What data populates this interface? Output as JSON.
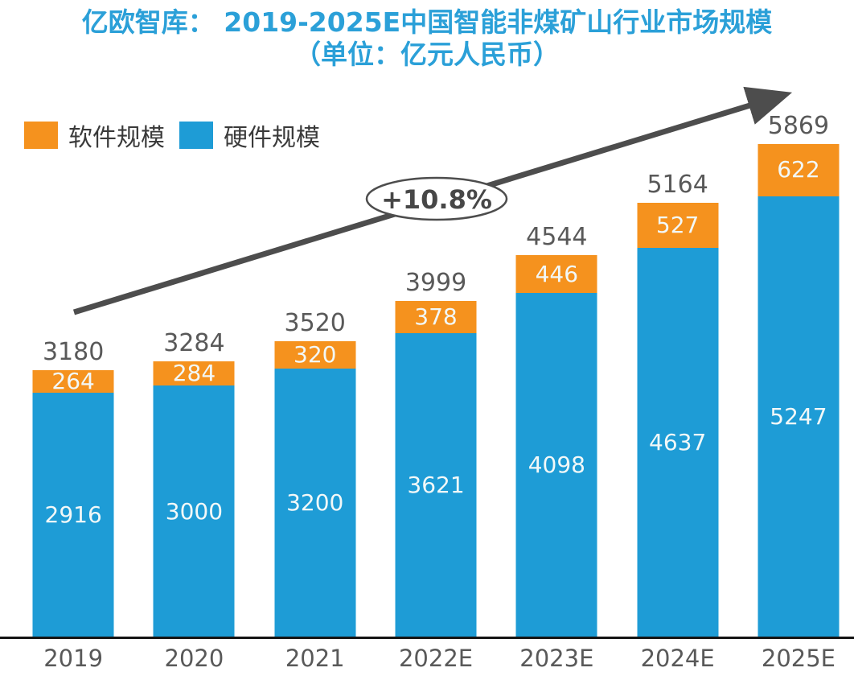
{
  "title": {
    "line1": "亿欧智库： 2019-2025E中国智能非煤矿山行业市场规模",
    "line2": "（单位：亿元人民币）"
  },
  "legend": {
    "items": [
      {
        "label": "软件规模",
        "color": "#F5921E"
      },
      {
        "label": "硬件规模",
        "color": "#1E9CD6"
      }
    ]
  },
  "annotation": {
    "growth_label": "+10.8%"
  },
  "colors": {
    "software_orange": "#F5921E",
    "hardware_blue": "#1E9CD6",
    "title_blue": "#2BA0D8",
    "label_gray": "#595959",
    "arrow_gray": "#4D4D4D",
    "segment_text": "#F2F8F8",
    "axis_black": "#141414"
  },
  "chart_data": {
    "type": "bar",
    "stacked": true,
    "title": "亿欧智库： 2019-2025E中国智能非煤矿山行业市场规模（单位：亿元人民币）",
    "unit": "亿元人民币",
    "categories": [
      "2019",
      "2020",
      "2021",
      "2022E",
      "2023E",
      "2024E",
      "2025E"
    ],
    "series": [
      {
        "name": "软件规模",
        "color": "#F5921E",
        "values": [
          264,
          284,
          320,
          378,
          446,
          527,
          622
        ]
      },
      {
        "name": "硬件规模",
        "color": "#1E9CD6",
        "values": [
          2916,
          3000,
          3200,
          3621,
          4098,
          4637,
          5247
        ]
      }
    ],
    "totals": [
      3180,
      3284,
      3520,
      3999,
      4544,
      5164,
      5869
    ],
    "annotations": [
      {
        "type": "trend-arrow",
        "label": "+10.8%",
        "direction": "up-right"
      }
    ],
    "legend_position": "top-left",
    "grid": false,
    "value_labels": "inside-segments-and-total-above",
    "ylim": [
      0,
      6200
    ]
  }
}
